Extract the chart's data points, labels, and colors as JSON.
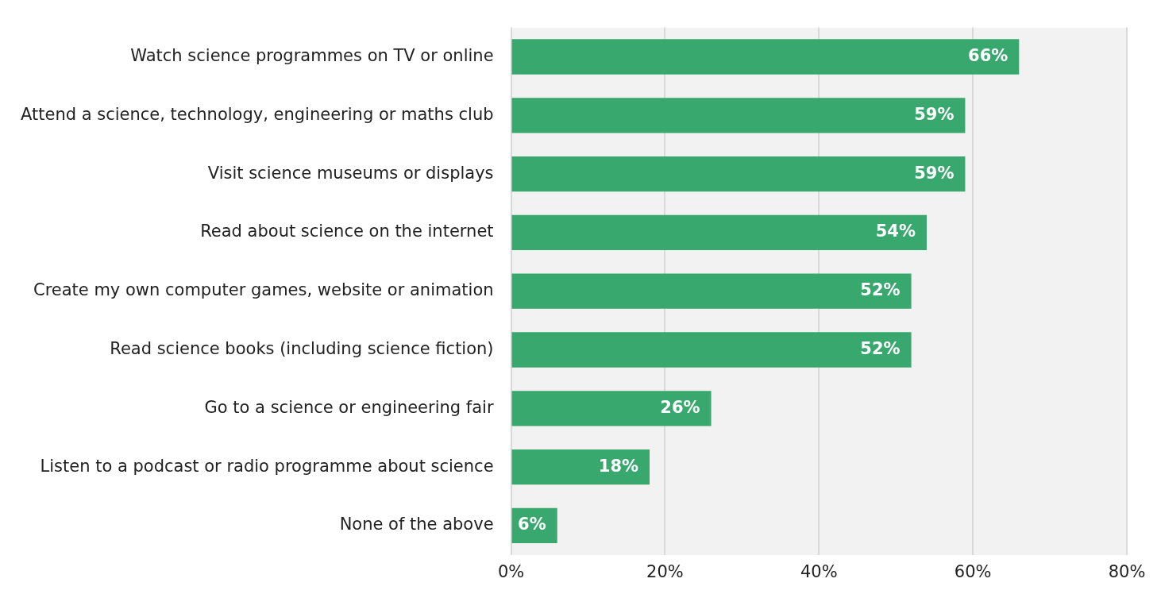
{
  "chart_data": {
    "type": "bar",
    "orientation": "horizontal",
    "categories": [
      "Watch science programmes on TV or online",
      "Attend a science, technology, engineering or maths club",
      "Visit science museums or displays",
      "Read about science on the internet",
      "Create my own computer games, website or animation",
      "Read science books (including science fiction)",
      "Go to a science or engineering fair",
      "Listen to a podcast or radio programme about science",
      "None of the above"
    ],
    "values": [
      66,
      59,
      59,
      54,
      52,
      52,
      26,
      18,
      6
    ],
    "value_labels": [
      "66%",
      "59%",
      "59%",
      "54%",
      "52%",
      "52%",
      "26%",
      "18%",
      "6%"
    ],
    "color": "#38a86e",
    "xlim": [
      0,
      80
    ],
    "xticks": [
      {
        "value": 0,
        "label": "0%"
      },
      {
        "value": 20,
        "label": "20%"
      },
      {
        "value": 40,
        "label": "40%"
      },
      {
        "value": 60,
        "label": "60%"
      },
      {
        "value": 80,
        "label": "80%"
      }
    ],
    "grid": "x"
  }
}
